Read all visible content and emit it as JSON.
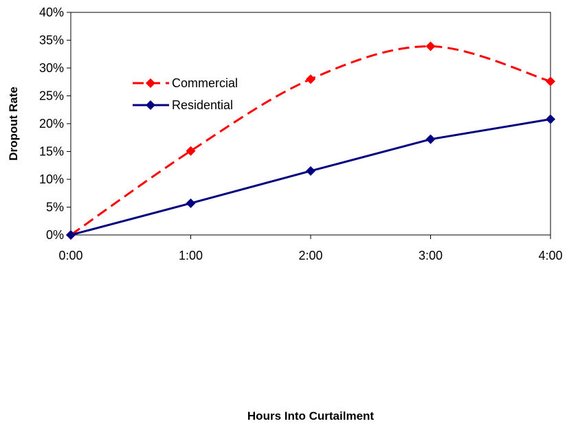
{
  "chart_data": {
    "type": "line",
    "title": "",
    "xlabel": "Hours Into Curtailment",
    "ylabel": "Dropout Rate",
    "categories": [
      "0:00",
      "1:00",
      "2:00",
      "3:00",
      "4:00"
    ],
    "ylim": [
      0,
      40
    ],
    "yticks": [
      "0%",
      "5%",
      "10%",
      "15%",
      "20%",
      "25%",
      "30%",
      "35%",
      "40%"
    ],
    "grid": false,
    "legend_position": "upper-left",
    "series": [
      {
        "name": "Commercial",
        "values": [
          0,
          15.1,
          28.0,
          33.9,
          27.6
        ],
        "color": "#ff0000",
        "line_style": "dashed",
        "marker": "diamond",
        "smooth": true
      },
      {
        "name": "Residential",
        "values": [
          0,
          5.7,
          11.5,
          17.2,
          20.8
        ],
        "color": "#000080",
        "line_style": "solid",
        "marker": "diamond",
        "smooth": false
      }
    ]
  }
}
